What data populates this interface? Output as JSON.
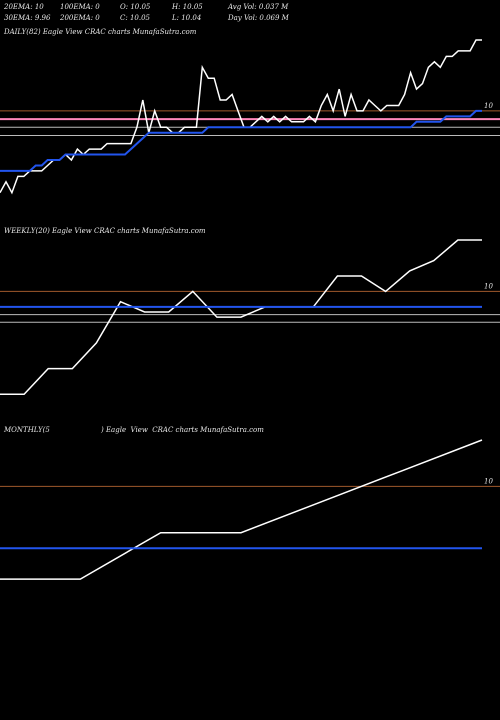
{
  "header": {
    "row1": [
      {
        "label": "20EMA: 10"
      },
      {
        "label": "100EMA: 0"
      },
      {
        "label": "O: 10.05"
      },
      {
        "label": "H: 10.05"
      },
      {
        "label": "Avg Vol: 0.037 M"
      }
    ],
    "row2": [
      {
        "label": "30EMA: 9.96"
      },
      {
        "label": "200EMA: 0"
      },
      {
        "label": "C: 10.05"
      },
      {
        "label": "L: 10.04"
      },
      {
        "label": "Day Vol: 0.069 M"
      }
    ]
  },
  "panels": {
    "daily": {
      "label": "DAILY(82) Eagle  View  CRAC charts MunafaSutra.com"
    },
    "weekly": {
      "label": "WEEKLY(20) Eagle  View  CRAC charts MunafaSutra.com"
    },
    "monthly": {
      "label": "MONTHLY(5                       ) Eagle  View  CRAC charts MunafaSutra.com"
    }
  },
  "colors": {
    "price": "#ffffff",
    "ema_blue": "#2255ee",
    "ema_pink": "#ff88bb",
    "level_brown": "#a05a2c",
    "level_gray": "#bbbbbb"
  },
  "chart_data": [
    {
      "type": "line",
      "name": "daily",
      "ytick": {
        "value": 10,
        "label": "10"
      },
      "ylim": [
        9.8,
        10.13
      ],
      "series": [
        {
          "values": [
            9.85,
            9.87,
            9.85,
            9.88,
            9.88,
            9.89,
            9.89,
            9.89,
            9.9,
            9.91,
            9.91,
            9.92,
            9.91,
            9.93,
            9.92,
            9.93,
            9.93,
            9.93,
            9.94,
            9.94,
            9.94,
            9.94,
            9.94,
            9.97,
            10.02,
            9.96,
            10.0,
            9.97,
            9.97,
            9.96,
            9.96,
            9.97,
            9.97,
            9.97,
            10.08,
            10.06,
            10.06,
            10.02,
            10.02,
            10.03,
            10.0,
            9.97,
            9.97,
            9.98,
            9.99,
            9.98,
            9.99,
            9.98,
            9.99,
            9.98,
            9.98,
            9.98,
            9.99,
            9.98,
            10.01,
            10.03,
            10.0,
            10.04,
            9.99,
            10.03,
            10.0,
            10.0,
            10.02,
            10.01,
            10.0,
            10.01,
            10.01,
            10.01,
            10.03,
            10.07,
            10.04,
            10.05,
            10.08,
            10.09,
            10.08,
            10.1,
            10.1,
            10.11,
            10.11,
            10.11,
            10.13,
            10.13
          ]
        },
        {
          "values": [
            9.89,
            9.89,
            9.89,
            9.89,
            9.89,
            9.89,
            9.9,
            9.9,
            9.91,
            9.91,
            9.91,
            9.92,
            9.92,
            9.92,
            9.92,
            9.92,
            9.92,
            9.92,
            9.92,
            9.92,
            9.92,
            9.92,
            9.93,
            9.94,
            9.95,
            9.96,
            9.96,
            9.96,
            9.96,
            9.96,
            9.96,
            9.96,
            9.96,
            9.96,
            9.96,
            9.97,
            9.97,
            9.97,
            9.97,
            9.97,
            9.97,
            9.97,
            9.97,
            9.97,
            9.97,
            9.97,
            9.97,
            9.97,
            9.97,
            9.97,
            9.97,
            9.97,
            9.97,
            9.97,
            9.97,
            9.97,
            9.97,
            9.97,
            9.97,
            9.97,
            9.97,
            9.97,
            9.97,
            9.97,
            9.97,
            9.97,
            9.97,
            9.97,
            9.97,
            9.97,
            9.98,
            9.98,
            9.98,
            9.98,
            9.98,
            9.99,
            9.99,
            9.99,
            9.99,
            9.99,
            10.0,
            10.0
          ]
        }
      ],
      "levels": [
        {
          "value": 9.985,
          "kind": "pink"
        },
        {
          "value": 9.97,
          "kind": "gray"
        },
        {
          "value": 9.955,
          "kind": "gray"
        },
        {
          "value": 10.0,
          "kind": "brown"
        }
      ]
    },
    {
      "type": "line",
      "name": "weekly",
      "ytick": {
        "value": 10,
        "label": "10"
      },
      "ylim": [
        9.75,
        10.1
      ],
      "series": [
        {
          "values": [
            9.8,
            9.8,
            9.85,
            9.85,
            9.9,
            9.98,
            9.96,
            9.96,
            10.0,
            9.95,
            9.95,
            9.97,
            9.97,
            9.97,
            10.03,
            10.03,
            10.0,
            10.04,
            10.06,
            10.1,
            10.1
          ]
        },
        {
          "values": [
            9.97,
            9.97,
            9.97,
            9.97,
            9.97,
            9.97,
            9.97,
            9.97,
            9.97,
            9.97,
            9.97,
            9.97,
            9.97,
            9.97,
            9.97,
            9.97,
            9.97,
            9.97,
            9.97,
            9.97,
            9.97
          ]
        }
      ],
      "levels": [
        {
          "value": 10.0,
          "kind": "brown"
        },
        {
          "value": 9.955,
          "kind": "gray"
        },
        {
          "value": 9.94,
          "kind": "gray"
        }
      ]
    },
    {
      "type": "line",
      "name": "monthly",
      "ytick": {
        "value": 10,
        "label": "10"
      },
      "ylim": [
        9.6,
        10.15
      ],
      "series": [
        {
          "values": [
            9.7,
            9.7,
            9.85,
            9.85,
            9.95,
            10.05,
            10.15
          ]
        },
        {
          "values": [
            9.8,
            9.8,
            9.8,
            9.8,
            9.8,
            9.8,
            9.8
          ]
        }
      ],
      "levels": [
        {
          "value": 10.0,
          "kind": "brown"
        }
      ]
    }
  ]
}
